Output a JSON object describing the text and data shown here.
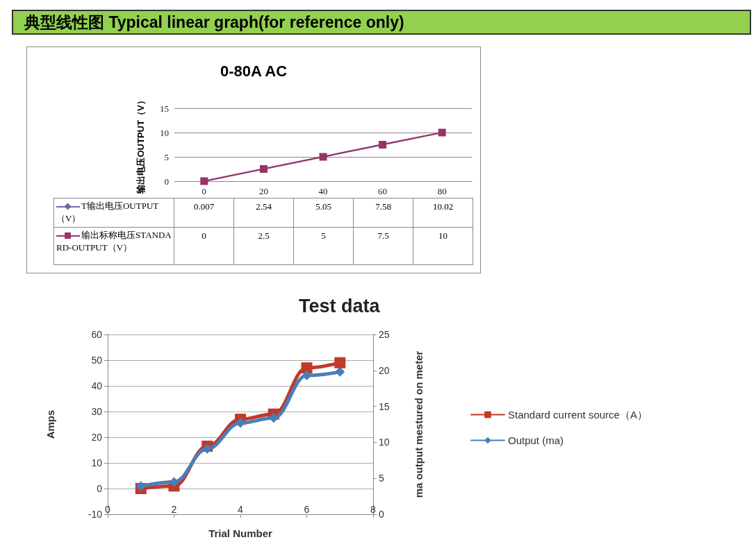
{
  "chart_data": [
    {
      "type": "line",
      "title": "0-80A AC",
      "ylabel": "输出电压OUTPUT（V）",
      "annotations": [
        "典型线性图 Typical linear graph(for reference only)"
      ],
      "categories": [
        "0",
        "20",
        "40",
        "60",
        "80"
      ],
      "ylim": [
        0,
        15
      ],
      "yticks": [
        0,
        5,
        10,
        15
      ],
      "grid": "y",
      "data_labels": true,
      "legend": "left",
      "series": [
        {
          "name": "T输出电压OUTPUT（V）",
          "color": "#6a6aa6",
          "marker": "diamond",
          "values": [
            0.007,
            2.54,
            5.05,
            7.58,
            10.02
          ]
        },
        {
          "name": "输出标称电压STANDARD-OUTPUT（V）",
          "color": "#993366",
          "marker": "square",
          "values": [
            0,
            2.5,
            5,
            7.5,
            10
          ]
        }
      ]
    },
    {
      "type": "line",
      "title": "Test data",
      "xlabel": "Trial Number",
      "ylabel": "Amps",
      "y2label": "ma output mestured on meter",
      "x": [
        1,
        2,
        3,
        4,
        5,
        6,
        7
      ],
      "xlim": [
        0,
        8
      ],
      "xticks": [
        0,
        2,
        4,
        6,
        8
      ],
      "ylim": [
        -10,
        60
      ],
      "yticks": [
        -10,
        0,
        10,
        20,
        30,
        40,
        50,
        60
      ],
      "y2lim": [
        0,
        25
      ],
      "y2ticks": [
        0,
        5,
        10,
        15,
        20,
        25
      ],
      "grid": "y",
      "legend": "right",
      "series": [
        {
          "name": "Standard current source（A）",
          "color": "#c0392b",
          "marker": "square",
          "values": [
            0,
            1,
            16.5,
            27,
            29,
            47,
            49
          ]
        },
        {
          "name": "Output (ma)",
          "color": "#4a7ebb",
          "marker": "diamond",
          "axis": "y2",
          "values": [
            3.9,
            4.5,
            9.1,
            12.7,
            13.4,
            19.3,
            19.8
          ]
        }
      ]
    }
  ]
}
